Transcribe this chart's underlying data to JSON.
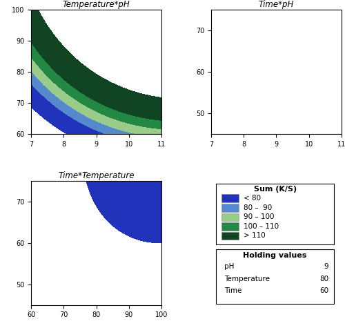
{
  "colors": [
    "#2233bb",
    "#5588cc",
    "#99cc88",
    "#228844",
    "#114422"
  ],
  "levels": [
    60,
    80,
    90,
    100,
    110,
    135
  ],
  "plot1": {
    "title": "Temperature*pH",
    "xlim": [
      7,
      11
    ],
    "ylim": [
      60,
      100
    ],
    "xticks": [
      7,
      8,
      9,
      10,
      11
    ],
    "yticks": [
      60,
      70,
      80,
      90,
      100
    ]
  },
  "plot2": {
    "title": "Time*pH",
    "xlim": [
      7,
      11
    ],
    "ylim": [
      45,
      75
    ],
    "xticks": [
      7,
      8,
      9,
      10,
      11
    ],
    "yticks": [
      50,
      60,
      70
    ]
  },
  "plot3": {
    "title": "Time*Temperature",
    "xlim": [
      60,
      100
    ],
    "ylim": [
      45,
      75
    ],
    "xticks": [
      60,
      70,
      80,
      90,
      100
    ],
    "yticks": [
      50,
      60,
      70
    ]
  },
  "legend_title": "Sum (K/S)",
  "legend_labels": [
    "< 80",
    "80 –  90",
    "90 – 100",
    "100 – 110",
    "> 110"
  ],
  "holding_title": "Holding values",
  "holding_lines": [
    [
      "pH",
      "9"
    ],
    [
      "Temperature",
      "80"
    ],
    [
      "Time",
      "60"
    ]
  ],
  "background": "#ffffff"
}
